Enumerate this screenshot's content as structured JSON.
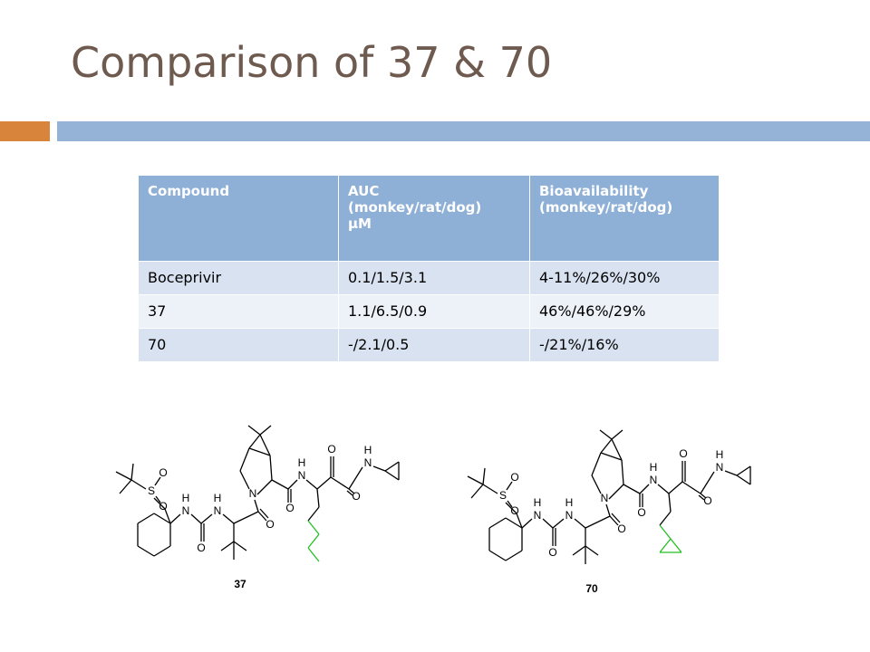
{
  "title": "Comparison of 37 & 70",
  "table": {
    "header": [
      "Compound",
      "AUC\n (monkey/rat/dog)\nµM",
      "Bioavailability\n(monkey/rat/dog)"
    ],
    "rows": [
      [
        "Boceprivir",
        "0.1/1.5/3.1",
        "4-11%/26%/30%"
      ],
      [
        "37",
        "1.1/6.5/0.9",
        "46%/46%/29%"
      ],
      [
        "70",
        "-/2.1/0.5",
        "-/21%/16%"
      ]
    ]
  },
  "structures": [
    {
      "label": "37",
      "atoms": [
        "O",
        "S",
        "O",
        "H",
        "N",
        "O",
        "H",
        "N",
        "N",
        "O",
        "O",
        "H",
        "N",
        "O",
        "O",
        "H",
        "N"
      ]
    },
    {
      "label": "70",
      "atoms": [
        "O",
        "S",
        "O",
        "H",
        "N",
        "O",
        "H",
        "N",
        "N",
        "O",
        "O",
        "H",
        "N",
        "O",
        "O",
        "H",
        "N"
      ]
    }
  ]
}
